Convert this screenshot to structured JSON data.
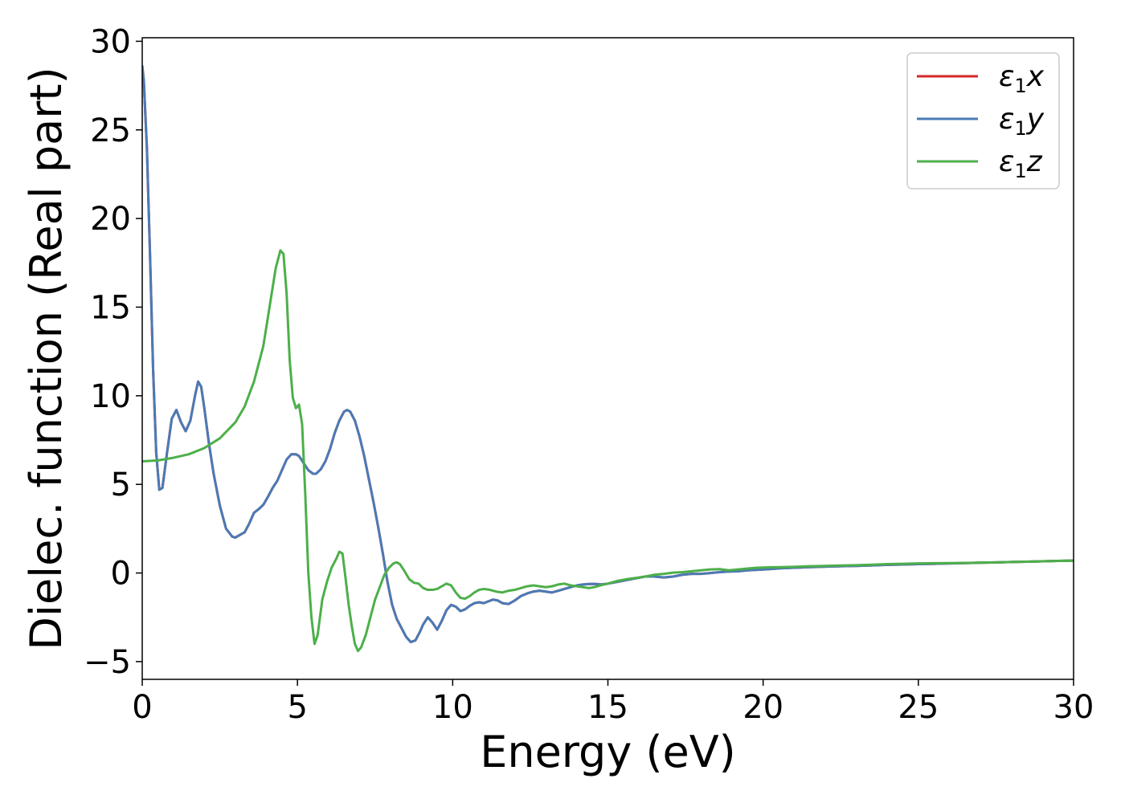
{
  "chart_data": {
    "type": "line",
    "xlabel": "Energy (eV)",
    "ylabel": "Dielec. function (Real part)",
    "xlim": [
      0,
      30
    ],
    "ylim": [
      -6,
      30.2
    ],
    "xticks": [
      0,
      5,
      10,
      15,
      20,
      25,
      30
    ],
    "xtick_labels": [
      "0",
      "5",
      "10",
      "15",
      "20",
      "25",
      "30"
    ],
    "yticks": [
      -5,
      0,
      5,
      10,
      15,
      20,
      25,
      30
    ],
    "ytick_labels": [
      "−5",
      "0",
      "5",
      "10",
      "15",
      "20",
      "25",
      "30"
    ],
    "grid": false,
    "legend_position": "top-right",
    "series": [
      {
        "name": "ε₁x",
        "legend_symbol": "ε",
        "legend_subscript": "1",
        "legend_axis": "x",
        "color": "#d62728",
        "x": [
          0,
          0.05,
          0.15,
          0.25,
          0.35,
          0.45,
          0.55,
          0.65,
          0.8,
          0.95,
          1.1,
          1.25,
          1.4,
          1.55,
          1.7,
          1.8,
          1.9,
          2.0,
          2.15,
          2.3,
          2.5,
          2.7,
          2.9,
          3.0,
          3.15,
          3.3,
          3.45,
          3.6,
          3.75,
          3.9,
          4.05,
          4.2,
          4.35,
          4.5,
          4.65,
          4.8,
          4.95,
          5.05,
          5.2,
          5.35,
          5.5,
          5.6,
          5.75,
          5.9,
          6.05,
          6.2,
          6.35,
          6.5,
          6.6,
          6.7,
          6.85,
          7.0,
          7.15,
          7.3,
          7.45,
          7.6,
          7.75,
          7.9,
          8.05,
          8.2,
          8.35,
          8.5,
          8.65,
          8.8,
          8.95,
          9.05,
          9.2,
          9.35,
          9.5,
          9.65,
          9.8,
          9.95,
          10.1,
          10.25,
          10.4,
          10.55,
          10.7,
          10.85,
          11.0,
          11.15,
          11.3,
          11.45,
          11.6,
          11.8,
          12.0,
          12.2,
          12.4,
          12.6,
          12.8,
          13.0,
          13.2,
          13.4,
          13.6,
          13.8,
          14.0,
          14.2,
          14.4,
          14.6,
          14.8,
          15.0,
          15.3,
          15.6,
          15.9,
          16.2,
          16.5,
          16.8,
          17.1,
          17.4,
          17.7,
          18.0,
          18.3,
          18.6,
          18.9,
          19.2,
          19.5,
          19.8,
          20.2,
          20.6,
          21.0,
          21.5,
          22.0,
          22.5,
          23.0,
          23.5,
          24.0,
          24.5,
          25.0,
          25.5,
          26.0,
          26.5,
          27.0,
          27.5,
          28.0,
          28.5,
          29.0,
          29.5,
          30.0
        ],
        "y": [
          28.6,
          27.8,
          24.0,
          18.0,
          11.5,
          6.8,
          4.7,
          4.8,
          6.8,
          8.7,
          9.2,
          8.5,
          8.0,
          8.6,
          10.0,
          10.8,
          10.5,
          9.3,
          7.3,
          5.6,
          3.8,
          2.5,
          2.05,
          2.0,
          2.15,
          2.3,
          2.8,
          3.4,
          3.6,
          3.85,
          4.3,
          4.8,
          5.2,
          5.8,
          6.4,
          6.7,
          6.7,
          6.6,
          6.2,
          5.8,
          5.6,
          5.6,
          5.85,
          6.3,
          7.0,
          7.9,
          8.6,
          9.1,
          9.2,
          9.1,
          8.6,
          7.7,
          6.6,
          5.3,
          4.0,
          2.6,
          1.1,
          -0.5,
          -1.8,
          -2.6,
          -3.1,
          -3.6,
          -3.9,
          -3.8,
          -3.3,
          -2.9,
          -2.5,
          -2.8,
          -3.2,
          -2.7,
          -2.1,
          -1.8,
          -1.9,
          -2.15,
          -2.05,
          -1.85,
          -1.7,
          -1.65,
          -1.7,
          -1.6,
          -1.5,
          -1.55,
          -1.7,
          -1.75,
          -1.55,
          -1.3,
          -1.15,
          -1.05,
          -1.0,
          -1.05,
          -1.1,
          -1.0,
          -0.9,
          -0.8,
          -0.7,
          -0.65,
          -0.62,
          -0.62,
          -0.65,
          -0.6,
          -0.5,
          -0.4,
          -0.3,
          -0.2,
          -0.2,
          -0.25,
          -0.2,
          -0.1,
          -0.05,
          -0.05,
          0.0,
          0.05,
          0.08,
          0.1,
          0.15,
          0.18,
          0.22,
          0.27,
          0.3,
          0.33,
          0.36,
          0.38,
          0.4,
          0.43,
          0.46,
          0.48,
          0.5,
          0.52,
          0.54,
          0.56,
          0.58,
          0.6,
          0.62,
          0.64,
          0.66,
          0.68,
          0.7
        ]
      },
      {
        "name": "ε₁y",
        "legend_symbol": "ε",
        "legend_subscript": "1",
        "legend_axis": "y",
        "color": "#4a7ab5",
        "x": [
          0,
          0.05,
          0.15,
          0.25,
          0.35,
          0.45,
          0.55,
          0.65,
          0.8,
          0.95,
          1.1,
          1.25,
          1.4,
          1.55,
          1.7,
          1.8,
          1.9,
          2.0,
          2.15,
          2.3,
          2.5,
          2.7,
          2.9,
          3.0,
          3.15,
          3.3,
          3.45,
          3.6,
          3.75,
          3.9,
          4.05,
          4.2,
          4.35,
          4.5,
          4.65,
          4.8,
          4.95,
          5.05,
          5.2,
          5.35,
          5.5,
          5.6,
          5.75,
          5.9,
          6.05,
          6.2,
          6.35,
          6.5,
          6.6,
          6.7,
          6.85,
          7.0,
          7.15,
          7.3,
          7.45,
          7.6,
          7.75,
          7.9,
          8.05,
          8.2,
          8.35,
          8.5,
          8.65,
          8.8,
          8.95,
          9.05,
          9.2,
          9.35,
          9.5,
          9.65,
          9.8,
          9.95,
          10.1,
          10.25,
          10.4,
          10.55,
          10.7,
          10.85,
          11.0,
          11.15,
          11.3,
          11.45,
          11.6,
          11.8,
          12.0,
          12.2,
          12.4,
          12.6,
          12.8,
          13.0,
          13.2,
          13.4,
          13.6,
          13.8,
          14.0,
          14.2,
          14.4,
          14.6,
          14.8,
          15.0,
          15.3,
          15.6,
          15.9,
          16.2,
          16.5,
          16.8,
          17.1,
          17.4,
          17.7,
          18.0,
          18.3,
          18.6,
          18.9,
          19.2,
          19.5,
          19.8,
          20.2,
          20.6,
          21.0,
          21.5,
          22.0,
          22.5,
          23.0,
          23.5,
          24.0,
          24.5,
          25.0,
          25.5,
          26.0,
          26.5,
          27.0,
          27.5,
          28.0,
          28.5,
          29.0,
          29.5,
          30.0
        ],
        "y": [
          28.6,
          27.8,
          24.0,
          18.0,
          11.5,
          6.8,
          4.7,
          4.8,
          6.8,
          8.7,
          9.2,
          8.5,
          8.0,
          8.6,
          10.0,
          10.8,
          10.5,
          9.3,
          7.3,
          5.6,
          3.8,
          2.5,
          2.05,
          2.0,
          2.15,
          2.3,
          2.8,
          3.4,
          3.6,
          3.85,
          4.3,
          4.8,
          5.2,
          5.8,
          6.4,
          6.7,
          6.7,
          6.6,
          6.2,
          5.8,
          5.6,
          5.6,
          5.85,
          6.3,
          7.0,
          7.9,
          8.6,
          9.1,
          9.2,
          9.1,
          8.6,
          7.7,
          6.6,
          5.3,
          4.0,
          2.6,
          1.1,
          -0.5,
          -1.8,
          -2.6,
          -3.1,
          -3.6,
          -3.9,
          -3.8,
          -3.3,
          -2.9,
          -2.5,
          -2.8,
          -3.2,
          -2.7,
          -2.1,
          -1.8,
          -1.9,
          -2.15,
          -2.05,
          -1.85,
          -1.7,
          -1.65,
          -1.7,
          -1.6,
          -1.5,
          -1.55,
          -1.7,
          -1.75,
          -1.55,
          -1.3,
          -1.15,
          -1.05,
          -1.0,
          -1.05,
          -1.1,
          -1.0,
          -0.9,
          -0.8,
          -0.7,
          -0.65,
          -0.62,
          -0.62,
          -0.65,
          -0.6,
          -0.5,
          -0.4,
          -0.3,
          -0.2,
          -0.2,
          -0.25,
          -0.2,
          -0.1,
          -0.05,
          -0.05,
          0.0,
          0.05,
          0.08,
          0.1,
          0.15,
          0.18,
          0.22,
          0.27,
          0.3,
          0.33,
          0.36,
          0.38,
          0.4,
          0.43,
          0.46,
          0.48,
          0.5,
          0.52,
          0.54,
          0.56,
          0.58,
          0.6,
          0.62,
          0.64,
          0.66,
          0.68,
          0.7
        ]
      },
      {
        "name": "ε₁z",
        "legend_symbol": "ε",
        "legend_subscript": "1",
        "legend_axis": "z",
        "color": "#4daf4a",
        "x": [
          0,
          0.5,
          1.0,
          1.5,
          2.0,
          2.5,
          3.0,
          3.3,
          3.6,
          3.9,
          4.1,
          4.3,
          4.45,
          4.55,
          4.65,
          4.75,
          4.85,
          4.95,
          5.05,
          5.15,
          5.25,
          5.35,
          5.45,
          5.55,
          5.65,
          5.8,
          5.95,
          6.1,
          6.25,
          6.35,
          6.45,
          6.55,
          6.65,
          6.75,
          6.85,
          6.95,
          7.05,
          7.2,
          7.35,
          7.5,
          7.65,
          7.8,
          7.95,
          8.1,
          8.2,
          8.3,
          8.45,
          8.6,
          8.75,
          8.9,
          9.05,
          9.2,
          9.35,
          9.5,
          9.65,
          9.8,
          9.95,
          10.1,
          10.25,
          10.4,
          10.55,
          10.7,
          10.85,
          11.0,
          11.2,
          11.4,
          11.6,
          11.8,
          12.0,
          12.2,
          12.4,
          12.6,
          12.8,
          13.0,
          13.2,
          13.4,
          13.6,
          13.8,
          14.0,
          14.2,
          14.4,
          14.6,
          14.8,
          15.0,
          15.3,
          15.6,
          15.9,
          16.2,
          16.5,
          16.8,
          17.1,
          17.4,
          17.7,
          18.0,
          18.3,
          18.6,
          18.9,
          19.2,
          19.5,
          19.8,
          20.2,
          20.6,
          21.0,
          21.5,
          22.0,
          22.5,
          23.0,
          23.5,
          24.0,
          24.5,
          25.0,
          25.5,
          26.0,
          26.5,
          27.0,
          27.5,
          28.0,
          28.5,
          29.0,
          29.5,
          30.0
        ],
        "y": [
          6.3,
          6.35,
          6.5,
          6.7,
          7.05,
          7.6,
          8.5,
          9.4,
          10.8,
          12.8,
          15.0,
          17.2,
          18.2,
          18.0,
          15.8,
          12.0,
          9.9,
          9.3,
          9.5,
          8.4,
          4.5,
          0.0,
          -2.5,
          -4.0,
          -3.5,
          -1.5,
          -0.5,
          0.3,
          0.8,
          1.2,
          1.1,
          -0.3,
          -1.8,
          -3.0,
          -4.0,
          -4.4,
          -4.2,
          -3.5,
          -2.5,
          -1.5,
          -0.8,
          -0.1,
          0.3,
          0.55,
          0.6,
          0.5,
          0.1,
          -0.35,
          -0.55,
          -0.6,
          -0.85,
          -0.95,
          -0.95,
          -0.9,
          -0.75,
          -0.6,
          -0.7,
          -1.1,
          -1.4,
          -1.45,
          -1.3,
          -1.1,
          -0.95,
          -0.9,
          -0.95,
          -1.05,
          -1.1,
          -1.0,
          -0.95,
          -0.85,
          -0.75,
          -0.7,
          -0.75,
          -0.8,
          -0.75,
          -0.65,
          -0.6,
          -0.7,
          -0.75,
          -0.8,
          -0.85,
          -0.78,
          -0.68,
          -0.6,
          -0.45,
          -0.35,
          -0.28,
          -0.2,
          -0.1,
          -0.05,
          0.02,
          0.05,
          0.1,
          0.15,
          0.2,
          0.22,
          0.15,
          0.2,
          0.25,
          0.3,
          0.32,
          0.33,
          0.35,
          0.38,
          0.4,
          0.42,
          0.44,
          0.47,
          0.5,
          0.52,
          0.54,
          0.55,
          0.56,
          0.57,
          0.58,
          0.6,
          0.62,
          0.64,
          0.66,
          0.68,
          0.7
        ]
      }
    ]
  }
}
